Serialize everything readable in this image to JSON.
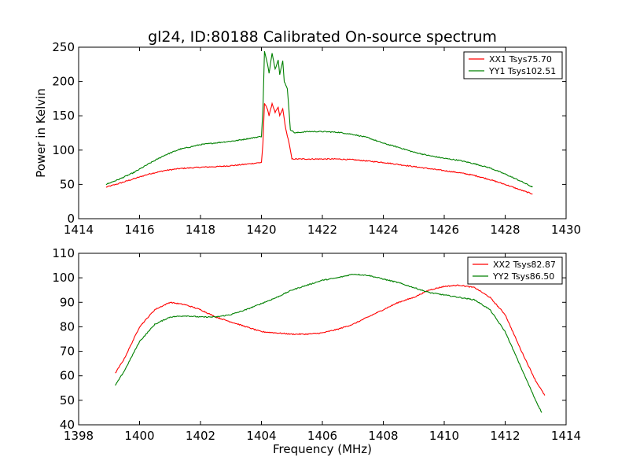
{
  "figure": {
    "title": "gl24, ID:80188 Calibrated On-source spectrum"
  },
  "chart_data": [
    {
      "type": "line",
      "title": "gl24, ID:80188 Calibrated On-source spectrum",
      "xlabel": "",
      "ylabel": "Power in Kelvin",
      "xlim": [
        1414,
        1430
      ],
      "ylim": [
        0,
        250
      ],
      "xticks": [
        1414,
        1416,
        1418,
        1420,
        1422,
        1424,
        1426,
        1428,
        1430
      ],
      "yticks": [
        0,
        50,
        100,
        150,
        200,
        250
      ],
      "grid": false,
      "legend_position": "top-right",
      "series": [
        {
          "name": "XX1 Tsys75.70",
          "color": "#ff0000",
          "points": [
            [
              1414.9,
              46
            ],
            [
              1415.3,
              51
            ],
            [
              1415.8,
              58
            ],
            [
              1416.3,
              65
            ],
            [
              1416.8,
              70
            ],
            [
              1417.3,
              73
            ],
            [
              1418,
              75
            ],
            [
              1418.6,
              76
            ],
            [
              1419.2,
              78
            ],
            [
              1419.6,
              80
            ],
            [
              1420.0,
              82
            ],
            [
              1420.05,
              110
            ],
            [
              1420.1,
              168
            ],
            [
              1420.2,
              160
            ],
            [
              1420.25,
              150
            ],
            [
              1420.35,
              168
            ],
            [
              1420.45,
              155
            ],
            [
              1420.55,
              162
            ],
            [
              1420.6,
              150
            ],
            [
              1420.7,
              160
            ],
            [
              1420.75,
              145
            ],
            [
              1420.8,
              130
            ],
            [
              1420.9,
              112
            ],
            [
              1421.0,
              87
            ],
            [
              1421.5,
              87
            ],
            [
              1422,
              87
            ],
            [
              1422.5,
              87
            ],
            [
              1423,
              86
            ],
            [
              1423.5,
              84
            ],
            [
              1424,
              82
            ],
            [
              1424.5,
              79
            ],
            [
              1425,
              76
            ],
            [
              1425.5,
              73
            ],
            [
              1426,
              70
            ],
            [
              1426.5,
              67
            ],
            [
              1427,
              63
            ],
            [
              1427.5,
              57
            ],
            [
              1428,
              50
            ],
            [
              1428.5,
              42
            ],
            [
              1428.9,
              36
            ]
          ]
        },
        {
          "name": "YY1 Tsys102.51",
          "color": "#008000",
          "points": [
            [
              1414.9,
              50
            ],
            [
              1415.3,
              57
            ],
            [
              1415.8,
              67
            ],
            [
              1416.3,
              80
            ],
            [
              1416.8,
              92
            ],
            [
              1417.3,
              101
            ],
            [
              1418,
              108
            ],
            [
              1418.6,
              111
            ],
            [
              1419.2,
              114
            ],
            [
              1419.6,
              117
            ],
            [
              1420.0,
              120
            ],
            [
              1420.05,
              160
            ],
            [
              1420.1,
              244
            ],
            [
              1420.2,
              225
            ],
            [
              1420.25,
              212
            ],
            [
              1420.35,
              242
            ],
            [
              1420.45,
              218
            ],
            [
              1420.55,
              232
            ],
            [
              1420.6,
              210
            ],
            [
              1420.7,
              230
            ],
            [
              1420.75,
              200
            ],
            [
              1420.85,
              190
            ],
            [
              1420.95,
              130
            ],
            [
              1421.1,
              125
            ],
            [
              1421.5,
              127
            ],
            [
              1422,
              127
            ],
            [
              1422.5,
              126
            ],
            [
              1423,
              123
            ],
            [
              1423.5,
              118
            ],
            [
              1424,
              110
            ],
            [
              1424.5,
              104
            ],
            [
              1425,
              97
            ],
            [
              1425.5,
              92
            ],
            [
              1426,
              88
            ],
            [
              1426.5,
              85
            ],
            [
              1427,
              80
            ],
            [
              1427.5,
              74
            ],
            [
              1428,
              65
            ],
            [
              1428.5,
              55
            ],
            [
              1428.9,
              46
            ]
          ]
        }
      ]
    },
    {
      "type": "line",
      "title": "",
      "xlabel": "Frequency (MHz)",
      "ylabel": "",
      "xlim": [
        1398,
        1414
      ],
      "ylim": [
        40,
        110
      ],
      "xticks": [
        1398,
        1400,
        1402,
        1404,
        1406,
        1408,
        1410,
        1412,
        1414
      ],
      "yticks": [
        40,
        50,
        60,
        70,
        80,
        90,
        100,
        110
      ],
      "grid": false,
      "legend_position": "top-right",
      "series": [
        {
          "name": "XX2 Tsys82.87",
          "color": "#ff0000",
          "points": [
            [
              1399.2,
              61
            ],
            [
              1399.5,
              67
            ],
            [
              1400,
              80
            ],
            [
              1400.5,
              87
            ],
            [
              1401,
              90
            ],
            [
              1401.5,
              89
            ],
            [
              1402,
              87
            ],
            [
              1402.5,
              84
            ],
            [
              1403,
              82
            ],
            [
              1403.5,
              80
            ],
            [
              1404,
              78
            ],
            [
              1404.5,
              77.5
            ],
            [
              1405,
              77
            ],
            [
              1405.5,
              77
            ],
            [
              1406,
              77.5
            ],
            [
              1406.5,
              79
            ],
            [
              1407,
              81
            ],
            [
              1407.5,
              84
            ],
            [
              1408,
              87
            ],
            [
              1408.5,
              90
            ],
            [
              1409,
              92
            ],
            [
              1409.5,
              95
            ],
            [
              1410,
              96.5
            ],
            [
              1410.5,
              97
            ],
            [
              1411,
              96
            ],
            [
              1411.5,
              92
            ],
            [
              1412,
              85
            ],
            [
              1412.5,
              71
            ],
            [
              1413,
              58
            ],
            [
              1413.3,
              52
            ]
          ]
        },
        {
          "name": "YY2 Tsys86.50",
          "color": "#008000",
          "points": [
            [
              1399.2,
              56
            ],
            [
              1399.5,
              62
            ],
            [
              1400,
              74
            ],
            [
              1400.5,
              81
            ],
            [
              1401,
              84
            ],
            [
              1401.5,
              84.5
            ],
            [
              1402,
              84
            ],
            [
              1402.5,
              84
            ],
            [
              1403,
              85
            ],
            [
              1403.5,
              87
            ],
            [
              1404,
              89.5
            ],
            [
              1404.5,
              92
            ],
            [
              1405,
              95
            ],
            [
              1405.5,
              97
            ],
            [
              1406,
              99
            ],
            [
              1406.5,
              100
            ],
            [
              1407,
              101.5
            ],
            [
              1407.5,
              101
            ],
            [
              1408,
              99.5
            ],
            [
              1408.5,
              98
            ],
            [
              1409,
              96
            ],
            [
              1409.5,
              94
            ],
            [
              1410,
              93
            ],
            [
              1410.5,
              92
            ],
            [
              1411,
              91
            ],
            [
              1411.5,
              87
            ],
            [
              1412,
              78
            ],
            [
              1412.5,
              64
            ],
            [
              1413,
              50
            ],
            [
              1413.2,
              45
            ]
          ]
        }
      ]
    }
  ]
}
